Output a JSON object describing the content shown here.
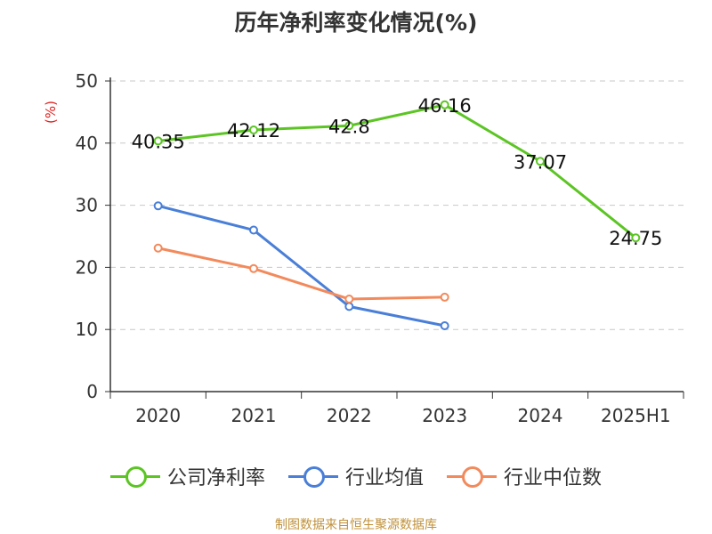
{
  "chart_data": {
    "type": "line",
    "title": "历年净利率变化情况(%)",
    "ylabel": "(%)",
    "xlabel": "",
    "ylim": [
      0,
      50
    ],
    "yticks": [
      0,
      10,
      20,
      30,
      40,
      50
    ],
    "categories": [
      "2020",
      "2021",
      "2022",
      "2023",
      "2024",
      "2025H1"
    ],
    "grid": true,
    "legend_position": "bottom",
    "series": [
      {
        "name": "公司净利率",
        "color": "#5cc524",
        "values": [
          40.35,
          42.12,
          42.8,
          46.16,
          37.07,
          24.75
        ],
        "labels": [
          "40.35",
          "42.12",
          "42.8",
          "46.16",
          "37.07",
          "24.75"
        ]
      },
      {
        "name": "行业均值",
        "color": "#4a7fd8",
        "values": [
          29.9,
          26.0,
          13.7,
          10.6,
          null,
          null
        ]
      },
      {
        "name": "行业中位数",
        "color": "#f28a5c",
        "values": [
          23.1,
          19.8,
          14.9,
          15.2,
          null,
          null
        ]
      }
    ]
  },
  "footer": {
    "source": "制图数据来自恒生聚源数据库"
  }
}
